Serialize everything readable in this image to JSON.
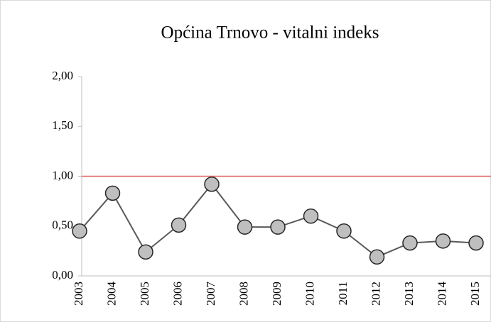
{
  "chart_data": {
    "type": "line",
    "title": "Općina Trnovo - vitalni indeks",
    "categories": [
      "2003",
      "2004",
      "2005",
      "2006",
      "2007",
      "2008",
      "2009",
      "2010",
      "2011",
      "2012",
      "2013",
      "2014",
      "2015"
    ],
    "series": [
      {
        "name": "vitalni indeks",
        "color": "#595959",
        "marker_color": "#bfbfbf",
        "values": [
          0.45,
          0.83,
          0.24,
          0.51,
          0.92,
          0.49,
          0.49,
          0.6,
          0.45,
          0.19,
          0.33,
          0.35,
          0.33
        ]
      }
    ],
    "ylim": [
      0,
      2
    ],
    "yticks": [
      {
        "value": 0,
        "label": "0,00"
      },
      {
        "value": 0.5,
        "label": "0,50"
      },
      {
        "value": 1,
        "label": "1,00"
      },
      {
        "value": 1.5,
        "label": "1,50"
      },
      {
        "value": 2,
        "label": "2,00"
      }
    ],
    "reference_line": {
      "value": 1,
      "color": "#e06666"
    },
    "grid": false
  }
}
